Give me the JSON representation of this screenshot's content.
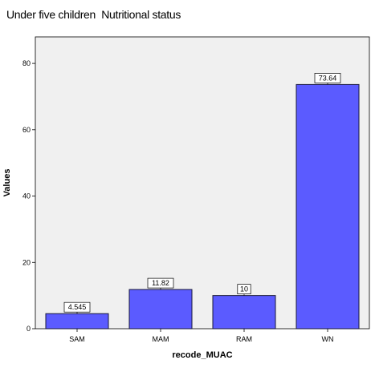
{
  "chart_data": {
    "type": "bar",
    "title": "Under five children  Nutritional status",
    "xlabel": "recode_MUAC",
    "ylabel": "Values",
    "categories": [
      "SAM",
      "MAM",
      "RAM",
      "WN"
    ],
    "values": [
      4.545,
      11.82,
      10,
      73.64
    ],
    "data_labels": [
      "4.545",
      "11.82",
      "10",
      "73.64"
    ],
    "y_ticks": [
      0,
      20,
      40,
      60,
      80
    ],
    "ylim": [
      0,
      88
    ],
    "grid": false,
    "legend": "none",
    "bar_color": "#5b5bff",
    "bar_edge_color": "#1a1a3a",
    "plot_background": "#f0f0f0"
  }
}
